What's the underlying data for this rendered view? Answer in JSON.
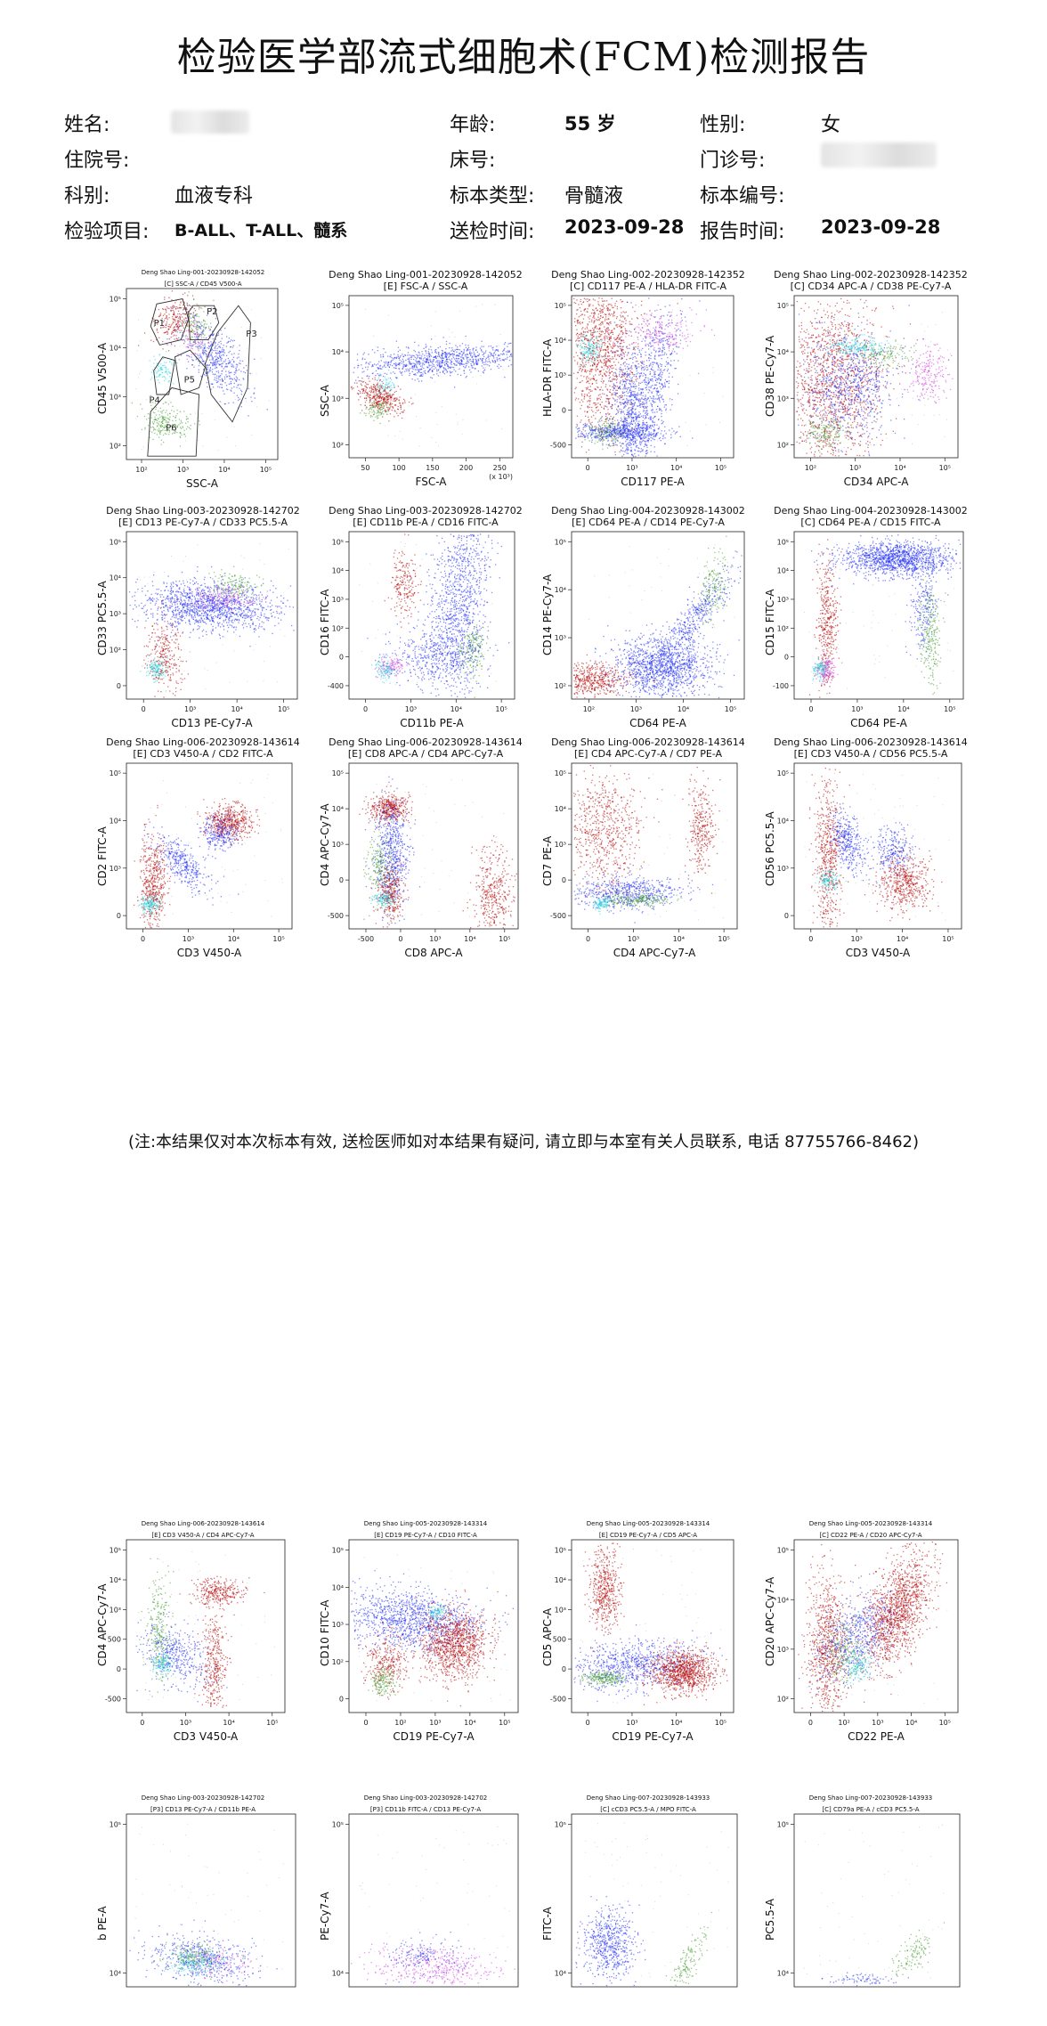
{
  "report": {
    "title": "检验医学部流式细胞术(FCM)检测报告",
    "fields": {
      "name_label": "姓名:",
      "age_label": "年龄:",
      "age_value": "55 岁",
      "sex_label": "性别:",
      "sex_value": "女",
      "inpatient_label": "住院号:",
      "bed_label": "床号:",
      "outpatient_label": "门诊号:",
      "dept_label": "科别:",
      "dept_value": "血液专科",
      "specimen_type_label": "标本类型:",
      "specimen_type_value": "骨髓液",
      "specimen_no_label": "标本编号:",
      "test_item_label": "检验项目:",
      "test_item_value": "B-ALL、T-ALL、髓系",
      "submit_time_label": "送检时间:",
      "submit_time_value": "2023-09-28",
      "report_time_label": "报告时间:",
      "report_time_value": "2023-09-28"
    },
    "note": "(注:本结果仅对本次标本有效, 送检医师如对本结果有疑问, 请立即与本室有关人员联系, 电话 87755766-8462)"
  },
  "colors": {
    "red": "#b40000",
    "blue": "#1e2cf5",
    "green": "#3f9a2a",
    "cyan": "#27d3e0",
    "magenta": "#d23ad8",
    "bright_red": "#ff1010"
  },
  "plots": [
    {
      "h1": "Deng Shao Ling-001-20230928-142052",
      "h2": "[C] SSC-A / CD45 V500-A",
      "ylabel": "CD45 V500-A",
      "xlabel": "SSC-A",
      "yt": [
        "10⁵",
        "10⁴",
        "10³",
        "10²"
      ],
      "xt": [
        "10²",
        "10³",
        "10⁴",
        "10⁵"
      ],
      "gates": [
        "P1",
        "P2",
        "P3",
        "P4",
        "P5",
        "P6"
      ]
    },
    {
      "h1": "Deng Shao Ling-001-20230928-142052",
      "h2": "[E] FSC-A / SSC-A",
      "ylabel": "SSC-A",
      "xlabel": "FSC-A",
      "yt": [
        "10⁵",
        "10⁴",
        "10³",
        "10²"
      ],
      "xt": [
        "50",
        "100",
        "150",
        "200",
        "250"
      ],
      "xunit": "(x 10³)"
    },
    {
      "h1": "Deng Shao Ling-002-20230928-142352",
      "h2": "[C] CD117 PE-A / HLA-DR FITC-A",
      "ylabel": "HLA-DR FITC-A",
      "xlabel": "CD117 PE-A",
      "yt": [
        "10⁵",
        "10⁴",
        "10³",
        "0",
        "-500"
      ],
      "xt": [
        "0",
        "10³",
        "10⁴",
        "10⁵"
      ]
    },
    {
      "h1": "Deng Shao Ling-002-20230928-142352",
      "h2": "[C] CD34 APC-A / CD38 PE-Cy7-A",
      "ylabel": "CD38 PE-Cy7-A",
      "xlabel": "CD34 APC-A",
      "yt": [
        "10⁵",
        "10⁴",
        "10³",
        "10²"
      ],
      "xt": [
        "10²",
        "10³",
        "10⁴",
        "10⁵"
      ]
    },
    {
      "h1": "Deng Shao Ling-003-20230928-142702",
      "h2": "[E] CD13 PE-Cy7-A / CD33 PC5.5-A",
      "ylabel": "CD33 PC5.5-A",
      "xlabel": "CD13 PE-Cy7-A",
      "yt": [
        "10⁵",
        "10⁴",
        "10³",
        "10²",
        "0"
      ],
      "xt": [
        "0",
        "10³",
        "10⁴",
        "10⁵"
      ]
    },
    {
      "h1": "Deng Shao Ling-003-20230928-142702",
      "h2": "[E] CD11b PE-A / CD16 FITC-A",
      "ylabel": "CD16 FITC-A",
      "xlabel": "CD11b PE-A",
      "yt": [
        "10⁵",
        "10⁴",
        "10³",
        "10²",
        "0",
        "-400"
      ],
      "xt": [
        "0",
        "10³",
        "10⁴",
        "10⁵"
      ]
    },
    {
      "h1": "Deng Shao Ling-004-20230928-143002",
      "h2": "[E] CD64 PE-A / CD14 PE-Cy7-A",
      "ylabel": "CD14 PE-Cy7-A",
      "xlabel": "CD64 PE-A",
      "yt": [
        "10⁵",
        "10⁴",
        "10³",
        "10²"
      ],
      "xt": [
        "10²",
        "10³",
        "10⁴",
        "10⁵"
      ]
    },
    {
      "h1": "Deng Shao Ling-004-20230928-143002",
      "h2": "[C] CD64 PE-A / CD15 FITC-A",
      "ylabel": "CD15 FITC-A",
      "xlabel": "CD64 PE-A",
      "yt": [
        "10⁵",
        "10⁴",
        "10³",
        "10²",
        "0",
        "-100"
      ],
      "xt": [
        "0",
        "10³",
        "10⁴",
        "10⁵"
      ]
    },
    {
      "h1": "Deng Shao Ling-006-20230928-143614",
      "h2": "[E] CD3 V450-A / CD2 FITC-A",
      "ylabel": "CD2 FITC-A",
      "xlabel": "CD3 V450-A",
      "yt": [
        "10⁵",
        "10⁴",
        "10³",
        "0"
      ],
      "xt": [
        "0",
        "10³",
        "10⁴",
        "10⁵"
      ]
    },
    {
      "h1": "Deng Shao Ling-006-20230928-143614",
      "h2": "[E] CD8 APC-A / CD4 APC-Cy7-A",
      "ylabel": "CD4 APC-Cy7-A",
      "xlabel": "CD8 APC-A",
      "yt": [
        "10⁵",
        "10⁴",
        "10³",
        "0",
        "-500"
      ],
      "xt": [
        "-500",
        "0",
        "10³",
        "10⁴",
        "10⁵"
      ]
    },
    {
      "h1": "Deng Shao Ling-006-20230928-143614",
      "h2": "[E] CD4 APC-Cy7-A / CD7 PE-A",
      "ylabel": "CD7 PE-A",
      "xlabel": "CD4 APC-Cy7-A",
      "yt": [
        "10⁵",
        "10⁴",
        "10³",
        "0",
        "-500"
      ],
      "xt": [
        "0",
        "10³",
        "10⁴",
        "10⁵"
      ]
    },
    {
      "h1": "Deng Shao Ling-006-20230928-143614",
      "h2": "[E] CD3 V450-A / CD56 PC5.5-A",
      "ylabel": "CD56 PC5.5-A",
      "xlabel": "CD3 V450-A",
      "yt": [
        "10⁵",
        "10⁴",
        "10³",
        "0"
      ],
      "xt": [
        "0",
        "10³",
        "10⁴",
        "10⁵"
      ]
    },
    {
      "h1": "Deng Shao Ling-006-20230928-143614",
      "h2": "[E] CD3 V450-A / CD4 APC-Cy7-A",
      "ylabel": "CD4 APC-Cy7-A",
      "xlabel": "CD3 V450-A",
      "yt": [
        "10⁵",
        "10⁴",
        "10³",
        "500",
        "0",
        "-500"
      ],
      "xt": [
        "0",
        "10³",
        "10⁴",
        "10⁵"
      ]
    },
    {
      "h1": "Deng Shao Ling-005-20230928-143314",
      "h2": "[E] CD19 PE-Cy7-A / CD10 FITC-A",
      "ylabel": "CD10 FITC-A",
      "xlabel": "CD19 PE-Cy7-A",
      "yt": [
        "10⁵",
        "10⁴",
        "10³",
        "10²",
        "0"
      ],
      "xt": [
        "0",
        "10²",
        "10³",
        "10⁴",
        "10⁵"
      ]
    },
    {
      "h1": "Deng Shao Ling-005-20230928-143314",
      "h2": "[E] CD19 PE-Cy7-A / CD5 APC-A",
      "ylabel": "CD5 APC-A",
      "xlabel": "CD19 PE-Cy7-A",
      "yt": [
        "10⁵",
        "10⁴",
        "10³",
        "500",
        "0",
        "-500"
      ],
      "xt": [
        "0",
        "10³",
        "10⁴",
        "10⁵"
      ]
    },
    {
      "h1": "Deng Shao Ling-005-20230928-143314",
      "h2": "[C] CD22 PE-A / CD20 APC-Cy7-A",
      "ylabel": "CD20 APC-Cy7-A",
      "xlabel": "CD22 PE-A",
      "yt": [
        "10⁵",
        "10⁴",
        "10³",
        "10²"
      ],
      "xt": [
        "0",
        "10²",
        "10³",
        "10⁴",
        "10⁵"
      ]
    },
    {
      "h1": "Deng Shao Ling-003-20230928-142702",
      "h2": "[P3] CD13 PE-Cy7-A / CD11b PE-A",
      "ylabel": "b PE-A",
      "xlabel": "",
      "yt": [
        "10⁵",
        "10⁴"
      ],
      "xt": []
    },
    {
      "h1": "Deng Shao Ling-003-20230928-142702",
      "h2": "[P3] CD11b FITC-A / CD13 PE-Cy7-A",
      "ylabel": "PE-Cy7-A",
      "xlabel": "",
      "yt": [
        "10⁵",
        "10⁴"
      ],
      "xt": []
    },
    {
      "h1": "Deng Shao Ling-007-20230928-143933",
      "h2": "[C] cCD3 PC5.5-A / MPO FITC-A",
      "ylabel": "FITC-A",
      "xlabel": "",
      "yt": [
        "10⁵",
        "10⁴"
      ],
      "xt": []
    },
    {
      "h1": "Deng Shao Ling-007-20230928-143933",
      "h2": "[C] CD79a PE-A / cCD3 PC5.5-A",
      "ylabel": "PC5.5-A",
      "xlabel": "",
      "yt": [
        "10⁵",
        "10⁴"
      ],
      "xt": []
    }
  ]
}
